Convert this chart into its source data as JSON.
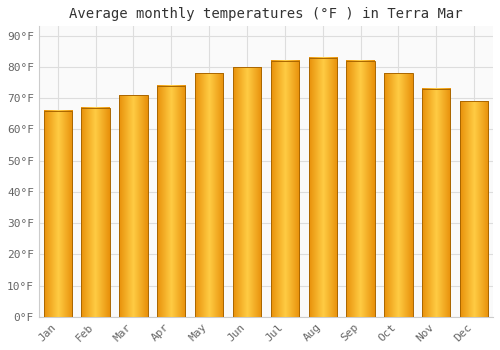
{
  "title": "Average monthly temperatures (°F ) in Terra Mar",
  "months": [
    "Jan",
    "Feb",
    "Mar",
    "Apr",
    "May",
    "Jun",
    "Jul",
    "Aug",
    "Sep",
    "Oct",
    "Nov",
    "Dec"
  ],
  "values": [
    66,
    67,
    71,
    74,
    78,
    80,
    82,
    83,
    82,
    78,
    73,
    69
  ],
  "bar_color_left": "#E8900A",
  "bar_color_center": "#FFCC44",
  "bar_color_right": "#E8900A",
  "bar_edge_color": "#AA6600",
  "background_color": "#FFFFFF",
  "plot_bg_color": "#FAFAFA",
  "yticks": [
    0,
    10,
    20,
    30,
    40,
    50,
    60,
    70,
    80,
    90
  ],
  "ylim": [
    0,
    93
  ],
  "title_fontsize": 10,
  "tick_fontsize": 8,
  "grid_color": "#DDDDDD",
  "bar_width": 0.75
}
